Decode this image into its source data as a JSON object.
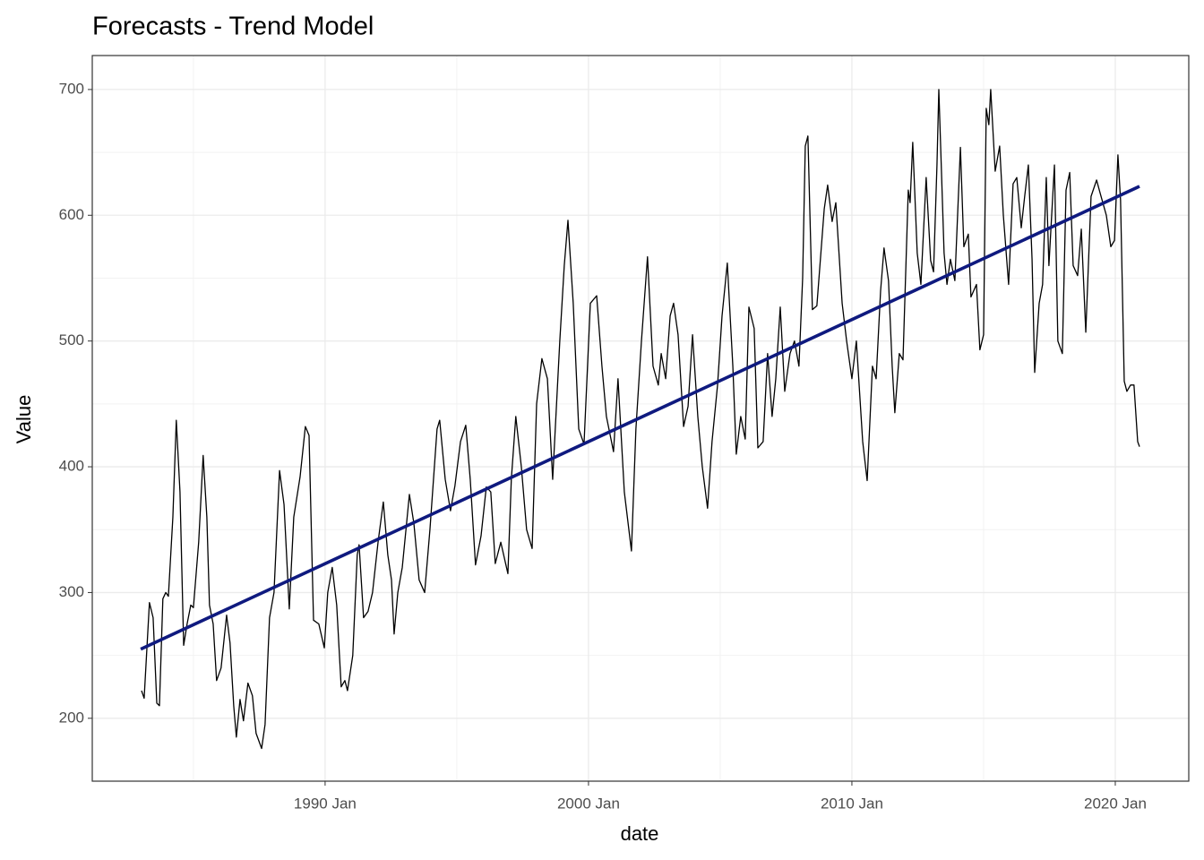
{
  "chart_data": {
    "type": "line",
    "title": "Forecasts - Trend Model",
    "x_label": "date",
    "y_label": "Value",
    "xlim": [
      1981.16,
      2022.79
    ],
    "ylim": [
      150,
      727
    ],
    "xticks": [
      {
        "value": 1990,
        "label": "1990 Jan"
      },
      {
        "value": 2000,
        "label": "2000 Jan"
      },
      {
        "value": 2010,
        "label": "2010 Jan"
      },
      {
        "value": 2020,
        "label": "2020 Jan"
      }
    ],
    "yticks": [
      200,
      300,
      400,
      500,
      600,
      700
    ],
    "x_minor_grid": [
      1985,
      1995,
      2005,
      2015
    ],
    "y_minor_grid": [
      250,
      350,
      450,
      550,
      650
    ],
    "grid": true,
    "series": [
      {
        "color": "#000000",
        "x": [
          1983.03,
          1983.13,
          1983.33,
          1983.47,
          1983.61,
          1983.71,
          1983.84,
          1983.95,
          1984.05,
          1984.22,
          1984.35,
          1984.49,
          1984.63,
          1984.76,
          1984.9,
          1985.0,
          1985.2,
          1985.37,
          1985.51,
          1985.61,
          1985.75,
          1985.88,
          1986.05,
          1986.26,
          1986.39,
          1986.53,
          1986.63,
          1986.77,
          1986.9,
          1987.07,
          1987.24,
          1987.38,
          1987.59,
          1987.72,
          1987.89,
          1988.06,
          1988.27,
          1988.44,
          1988.64,
          1988.81,
          1989.05,
          1989.25,
          1989.39,
          1989.56,
          1989.76,
          1989.97,
          1990.1,
          1990.27,
          1990.44,
          1990.61,
          1990.75,
          1990.85,
          1991.05,
          1991.22,
          1991.29,
          1991.46,
          1991.63,
          1991.8,
          1992.01,
          1992.21,
          1992.38,
          1992.52,
          1992.62,
          1992.76,
          1992.93,
          1993.2,
          1993.37,
          1993.57,
          1993.78,
          1993.98,
          1994.25,
          1994.35,
          1994.56,
          1994.76,
          1994.93,
          1995.14,
          1995.34,
          1995.51,
          1995.71,
          1995.92,
          1996.12,
          1996.29,
          1996.46,
          1996.67,
          1996.94,
          1997.07,
          1997.24,
          1997.45,
          1997.65,
          1997.86,
          1998.03,
          1998.23,
          1998.44,
          1998.64,
          1998.91,
          1999.08,
          1999.22,
          1999.42,
          1999.63,
          1999.83,
          2000.07,
          2000.31,
          2000.51,
          2000.68,
          2000.95,
          2001.12,
          2001.36,
          2001.63,
          2001.8,
          2002.01,
          2002.24,
          2002.45,
          2002.65,
          2002.76,
          2002.93,
          2003.1,
          2003.23,
          2003.4,
          2003.61,
          2003.78,
          2003.95,
          2004.15,
          2004.32,
          2004.52,
          2004.69,
          2004.9,
          2005.07,
          2005.27,
          2005.48,
          2005.61,
          2005.78,
          2005.95,
          2006.09,
          2006.29,
          2006.43,
          2006.63,
          2006.8,
          2006.97,
          2007.11,
          2007.28,
          2007.45,
          2007.65,
          2007.82,
          2007.99,
          2008.13,
          2008.23,
          2008.33,
          2008.5,
          2008.67,
          2008.95,
          2009.08,
          2009.25,
          2009.39,
          2009.63,
          2009.8,
          2010.0,
          2010.17,
          2010.41,
          2010.58,
          2010.78,
          2010.92,
          2011.09,
          2011.22,
          2011.39,
          2011.53,
          2011.63,
          2011.8,
          2011.94,
          2012.14,
          2012.21,
          2012.31,
          2012.48,
          2012.62,
          2012.82,
          2012.99,
          2013.1,
          2013.23,
          2013.3,
          2013.5,
          2013.61,
          2013.74,
          2013.91,
          2014.12,
          2014.25,
          2014.42,
          2014.52,
          2014.73,
          2014.86,
          2015.0,
          2015.1,
          2015.2,
          2015.27,
          2015.44,
          2015.61,
          2015.75,
          2015.95,
          2016.12,
          2016.26,
          2016.43,
          2016.56,
          2016.7,
          2016.84,
          2016.94,
          2017.11,
          2017.24,
          2017.38,
          2017.48,
          2017.69,
          2017.82,
          2017.99,
          2018.13,
          2018.27,
          2018.4,
          2018.57,
          2018.71,
          2018.88,
          2019.08,
          2019.29,
          2019.42,
          2019.66,
          2019.83,
          2019.97,
          2020.1,
          2020.2,
          2020.34,
          2020.44,
          2020.58,
          2020.71,
          2020.85,
          2020.92
        ],
        "values": [
          222,
          216,
          292,
          280,
          212,
          210,
          295,
          300,
          297,
          360,
          437,
          380,
          258,
          275,
          290,
          288,
          340,
          409,
          360,
          290,
          275,
          230,
          240,
          282,
          260,
          210,
          185,
          215,
          198,
          228,
          218,
          188,
          176,
          195,
          280,
          300,
          397,
          370,
          287,
          360,
          392,
          432,
          425,
          278,
          275,
          256,
          300,
          320,
          290,
          225,
          230,
          222,
          250,
          330,
          338,
          280,
          285,
          300,
          340,
          372,
          330,
          310,
          267,
          300,
          320,
          378,
          355,
          310,
          300,
          350,
          430,
          437,
          390,
          365,
          385,
          420,
          433,
          390,
          322,
          345,
          384,
          380,
          323,
          340,
          315,
          390,
          440,
          400,
          350,
          335,
          450,
          486,
          470,
          390,
          500,
          560,
          596,
          530,
          430,
          418,
          530,
          536,
          480,
          440,
          412,
          470,
          380,
          333,
          430,
          500,
          567,
          480,
          465,
          490,
          470,
          520,
          530,
          505,
          432,
          448,
          505,
          440,
          400,
          367,
          420,
          465,
          520,
          562,
          480,
          410,
          440,
          422,
          527,
          510,
          415,
          420,
          490,
          440,
          470,
          527,
          460,
          490,
          500,
          480,
          550,
          655,
          663,
          525,
          528,
          605,
          624,
          595,
          610,
          530,
          500,
          470,
          500,
          420,
          389,
          480,
          470,
          540,
          574,
          548,
          480,
          443,
          490,
          485,
          620,
          610,
          658,
          570,
          545,
          630,
          564,
          555,
          640,
          700,
          570,
          545,
          565,
          548,
          654,
          575,
          585,
          535,
          545,
          493,
          505,
          685,
          672,
          700,
          635,
          655,
          600,
          545,
          625,
          630,
          590,
          615,
          640,
          565,
          475,
          530,
          545,
          630,
          560,
          640,
          500,
          490,
          620,
          634,
          560,
          552,
          589,
          507,
          615,
          628,
          618,
          600,
          575,
          580,
          648,
          612,
          468,
          460,
          465,
          465,
          420,
          416
        ]
      },
      {
        "color": "#0f1a7f",
        "x": [
          1983.0,
          2020.92
        ],
        "values": [
          255,
          623
        ]
      }
    ]
  }
}
